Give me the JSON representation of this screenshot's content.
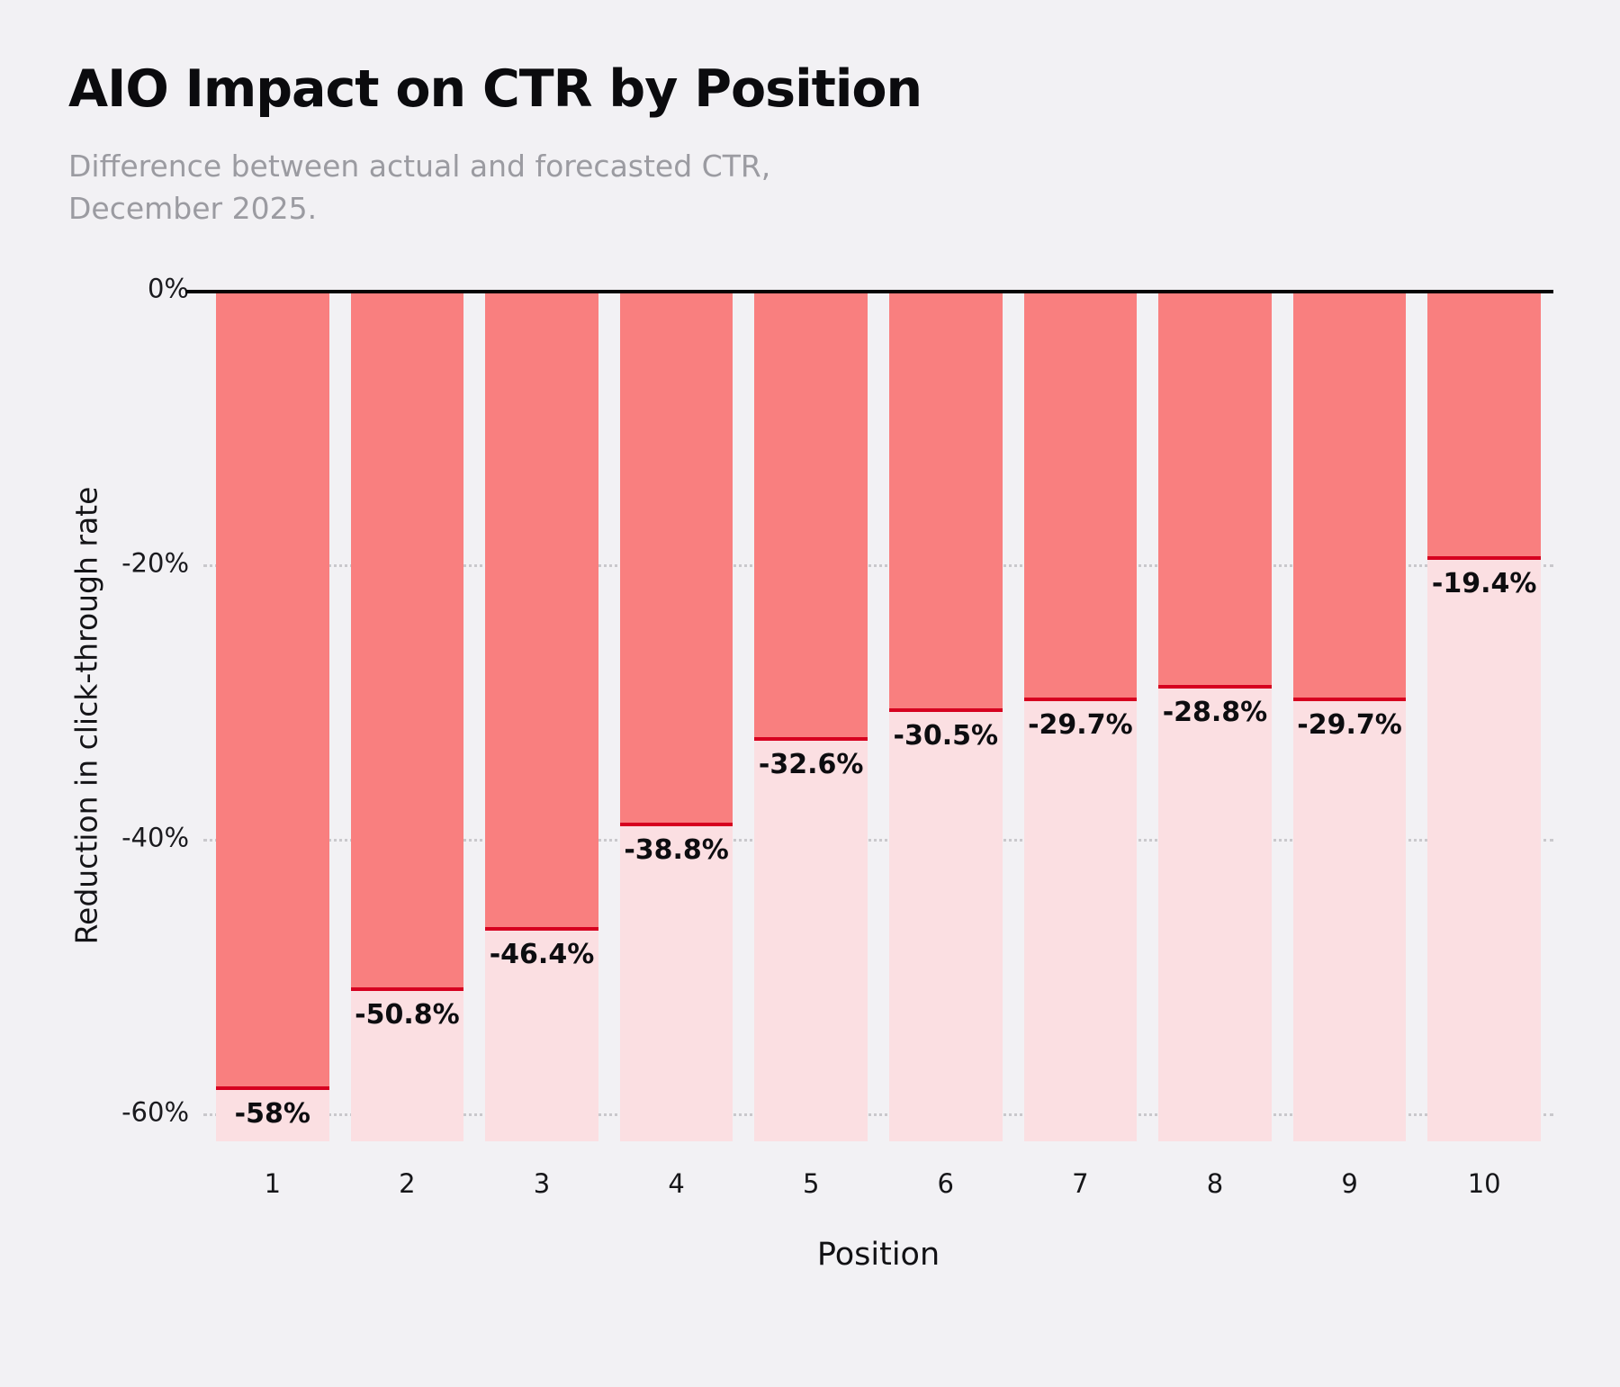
{
  "chart": {
    "title": "AIO Impact on CTR by Position",
    "subtitle": "Difference between actual and forecasted CTR,\nDecember 2025.",
    "xlabel": "Position",
    "ylabel": "Reduction in click-through rate"
  },
  "chart_data": {
    "type": "bar",
    "title": "AIO Impact on CTR by Position",
    "subtitle": "Difference between actual and forecasted CTR, December 2025.",
    "xlabel": "Position",
    "ylabel": "Reduction in click-through rate",
    "categories": [
      "1",
      "2",
      "3",
      "4",
      "5",
      "6",
      "7",
      "8",
      "9",
      "10"
    ],
    "values": [
      -58,
      -50.8,
      -46.4,
      -38.8,
      -32.6,
      -30.5,
      -29.7,
      -28.8,
      -29.7,
      -19.4
    ],
    "value_labels": [
      "-58%",
      "-50.8%",
      "-46.4%",
      "-38.8%",
      "-32.6%",
      "-30.5%",
      "-29.7%",
      "-28.8%",
      "-29.7%",
      "-19.4%"
    ],
    "ylim": [
      -62,
      0
    ],
    "yticks": [
      0,
      -20,
      -40,
      -60
    ],
    "ytick_labels": [
      "0%",
      "-20%",
      "-40%",
      "-60%"
    ],
    "grid": true,
    "legend": null,
    "colors": {
      "bar_upper": "#f97f7f",
      "bar_lower": "#fbdfe2",
      "value_line": "#d6001f",
      "baseline": "#050505",
      "gridline": "#c9c8cc",
      "background": "#f2f1f4",
      "title": "#0b0b0e",
      "subtitle": "#9b9ba1"
    }
  }
}
